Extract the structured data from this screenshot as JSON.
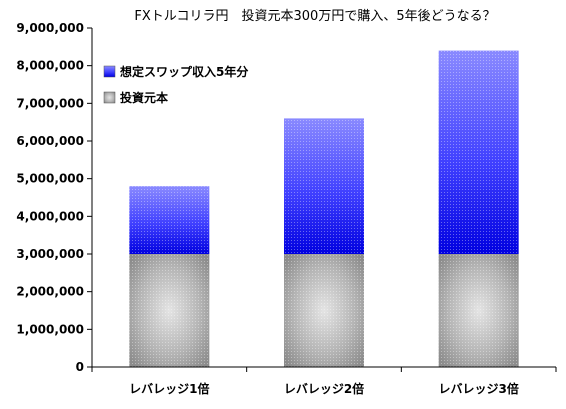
{
  "chart_data": {
    "type": "bar",
    "stacked": true,
    "title": "FXトルコリラ円　投資元本300万円で購入、5年後どうなる？",
    "categories": [
      "レバレッジ1倍",
      "レバレッジ2倍",
      "レバレッジ3倍"
    ],
    "series": [
      {
        "name": "投資元本",
        "values": [
          3000000,
          3000000,
          3000000
        ],
        "color": "#a0a0a0"
      },
      {
        "name": "想定スワップ収入5年分",
        "values": [
          1800000,
          3600000,
          5400000
        ],
        "color": "#3333ff"
      }
    ],
    "ylim": [
      0,
      9000000
    ],
    "yticks": [
      0,
      1000000,
      2000000,
      3000000,
      4000000,
      5000000,
      6000000,
      7000000,
      8000000,
      9000000
    ],
    "ytick_labels": [
      "0",
      "1,000,000",
      "2,000,000",
      "3,000,000",
      "4,000,000",
      "5,000,000",
      "6,000,000",
      "7,000,000",
      "8,000,000",
      "9,000,000"
    ],
    "xlabel": "",
    "ylabel": "",
    "grid": false,
    "legend_position": "top-left",
    "legend_order": [
      "想定スワップ収入5年分",
      "投資元本"
    ]
  }
}
